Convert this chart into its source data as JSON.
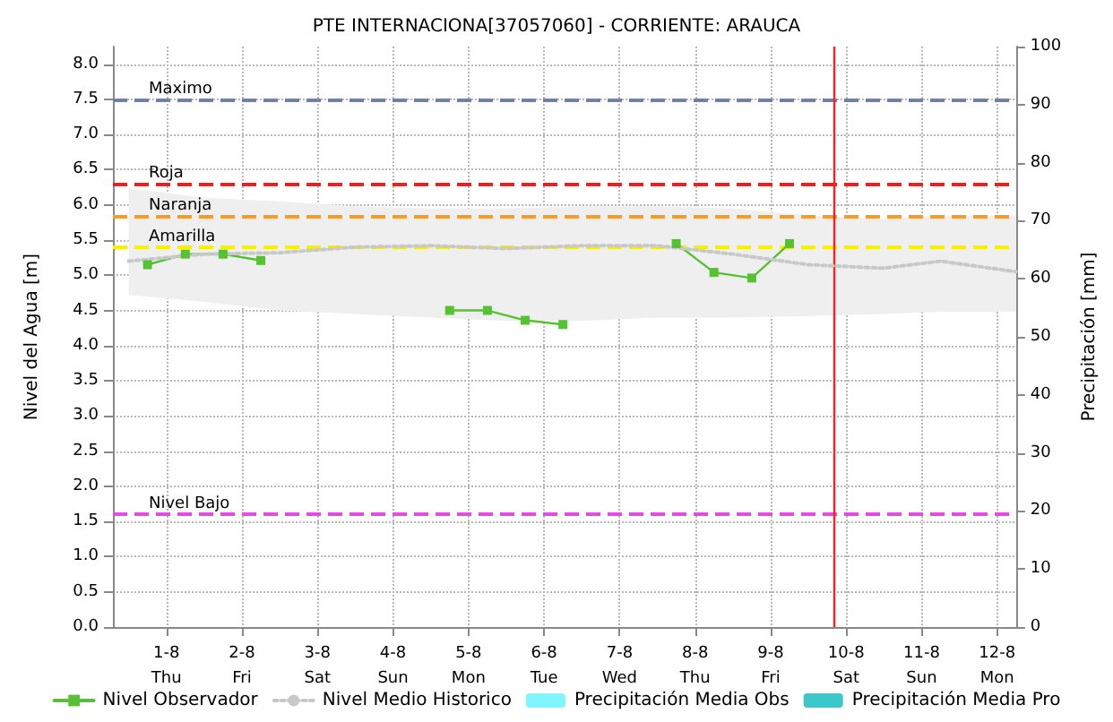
{
  "chart_data": {
    "type": "line",
    "title": "PTE INTERNACIONA[37057060] - CORRIENTE: ARAUCA",
    "ylabel": "Nivel del Agua [m]",
    "y2label": "Precipitación [mm]",
    "xlim": [
      "--07-31T07:00",
      "--08-12T06:00"
    ],
    "xticks": [
      {
        "value": "--08-01",
        "label": "1-8\nThu"
      },
      {
        "value": "--08-02",
        "label": "2-8\nFri"
      },
      {
        "value": "--08-03",
        "label": "3-8\nSat"
      },
      {
        "value": "--08-04",
        "label": "4-8\nSun"
      },
      {
        "value": "--08-05",
        "label": "5-8\nMon"
      },
      {
        "value": "--08-06",
        "label": "6-8\nTue"
      },
      {
        "value": "--08-07",
        "label": "7-8\nWed"
      },
      {
        "value": "--08-08",
        "label": "8-8\nThu"
      },
      {
        "value": "--08-09",
        "label": "9-8\nFri"
      },
      {
        "value": "--08-10",
        "label": "10-8\nSat"
      },
      {
        "value": "--08-11",
        "label": "11-8\nSun"
      },
      {
        "value": "--08-12",
        "label": "12-8\nMon"
      }
    ],
    "ylim": [
      0,
      8.25
    ],
    "yticks": [
      {
        "value": 0,
        "label": "0.0"
      },
      {
        "value": 0.5,
        "label": "0.5"
      },
      {
        "value": 1,
        "label": "1.0"
      },
      {
        "value": 1.5,
        "label": "1.5"
      },
      {
        "value": 2,
        "label": "2.0"
      },
      {
        "value": 2.5,
        "label": "2.5"
      },
      {
        "value": 3,
        "label": "3.0"
      },
      {
        "value": 3.5,
        "label": "3.5"
      },
      {
        "value": 4,
        "label": "4.0"
      },
      {
        "value": 4.5,
        "label": "4.5"
      },
      {
        "value": 5,
        "label": "5.0"
      },
      {
        "value": 5.5,
        "label": "5.5"
      },
      {
        "value": 6,
        "label": "6.0"
      },
      {
        "value": 6.5,
        "label": "6.5"
      },
      {
        "value": 7,
        "label": "7.0"
      },
      {
        "value": 7.5,
        "label": "7.5"
      },
      {
        "value": 8,
        "label": "8.0"
      }
    ],
    "y2lim": [
      0,
      100
    ],
    "y2ticks": [
      0,
      10,
      20,
      30,
      40,
      50,
      60,
      70,
      80,
      90,
      100
    ],
    "grid": true,
    "legend": "bottom",
    "series": [
      {
        "name": "Nivel Observador",
        "color": "#55c232",
        "marker": "square",
        "line_style": "solid",
        "x": [
          "--07-31T18:00",
          "--08-01T06:00",
          "--08-01T18:00",
          "--08-02T06:00",
          "--08-03T12:00",
          "--08-04T18:00",
          "--08-05T06:00",
          "--08-05T18:00",
          "--08-06T06:00",
          "--08-07T00:00",
          "--08-07T18:00",
          "--08-08T06:00",
          "--08-08T18:00",
          "--08-09T06:00"
        ],
        "values": [
          5.15,
          5.3,
          5.3,
          5.21,
          null,
          4.5,
          4.5,
          4.36,
          4.3,
          null,
          5.45,
          5.04,
          4.96,
          5.45
        ]
      },
      {
        "name": "Nivel Medio Historico",
        "color": "#c8c8c8",
        "marker": "none",
        "line_style": "dotted",
        "x": [
          "--07-31T12:00",
          "--08-01T12:00",
          "--08-02T12:00",
          "--08-03T12:00",
          "--08-04T12:00",
          "--08-05T12:00",
          "--08-06T12:00",
          "--08-07T12:00",
          "--08-08T12:00",
          "--08-09T12:00",
          "--08-10T12:00",
          "--08-11T06:00",
          "--08-12T06:00"
        ],
        "values": [
          5.2,
          5.3,
          5.32,
          5.4,
          5.42,
          5.38,
          5.42,
          5.42,
          5.3,
          5.15,
          5.1,
          5.2,
          5.05
        ],
        "lower": [
          4.72,
          4.62,
          4.5,
          4.45,
          4.4,
          4.35,
          4.35,
          4.4,
          4.4,
          4.42,
          4.45,
          4.48,
          4.48
        ],
        "upper": [
          6.24,
          6.1,
          6.05,
          5.98,
          5.95,
          5.95,
          5.98,
          5.98,
          5.95,
          5.85,
          5.8,
          5.85,
          5.85
        ]
      },
      {
        "name": "Precipitación Media Obs",
        "type": "bar",
        "color": "#80f4ff"
      },
      {
        "name": "Precipitación Media Pro",
        "type": "bar",
        "color": "#3cc8c8"
      }
    ],
    "ref_lines": [
      {
        "axis": "y",
        "value": 7.5,
        "label": "Maximo",
        "color": "#7080a8",
        "line_style": "dashed"
      },
      {
        "axis": "y",
        "value": 6.3,
        "label": "Roja",
        "color": "#ff1a1a",
        "line_style": "dashed"
      },
      {
        "axis": "y",
        "value": 5.85,
        "label": "Naranja",
        "color": "#ff9a1a",
        "line_style": "dashed"
      },
      {
        "axis": "y",
        "value": 5.4,
        "label": "Amarilla",
        "color": "#f5f000",
        "line_style": "dashed"
      },
      {
        "axis": "y",
        "value": 1.6,
        "label": "Nivel Bajo",
        "color": "#ee44ee",
        "line_style": "dashed"
      },
      {
        "axis": "x",
        "value": "--08-09T20:00",
        "color": "#ff2020",
        "line_style": "solid"
      }
    ]
  }
}
